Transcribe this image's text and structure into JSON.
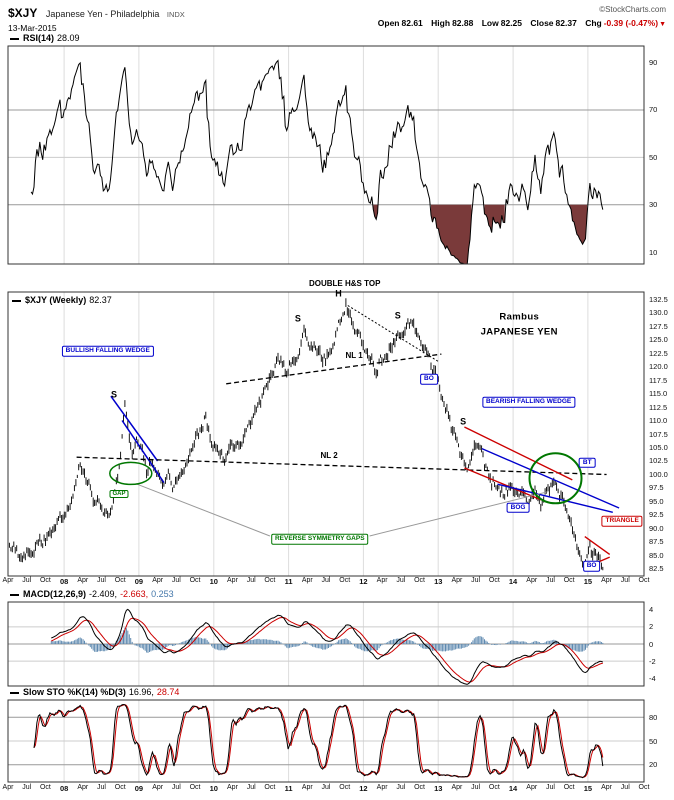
{
  "header": {
    "symbol": "$XJY",
    "title": "Japanese Yen - Philadelphia",
    "exchange": "INDX",
    "copyright": "©StockCharts.com",
    "date": "13-Mar-2015",
    "quote": {
      "open_label": "Open",
      "open": "82.61",
      "high_label": "High",
      "high": "82.88",
      "low_label": "Low",
      "low": "82.25",
      "close_label": "Close",
      "close": "82.37",
      "chg_label": "Chg",
      "chg": "-0.39 (-0.47%)",
      "chg_dir": "▼"
    }
  },
  "panels": {
    "rsi": {
      "label": "RSI(14)",
      "value": "28.09"
    },
    "main": {
      "label": "$XJY (Weekly)",
      "value": "82.37"
    },
    "macd": {
      "label": "MACD(12,26,9)",
      "v1": "-2.409,",
      "v2": "-2.663,",
      "v3": "0.253"
    },
    "sto": {
      "label": "Slow STO %K(14) %D(3)",
      "v1": "16.96,",
      "v2": "28.74"
    }
  },
  "x_axis": {
    "labels": [
      "Apr",
      "Jul",
      "Oct",
      "08",
      "Apr",
      "Jul",
      "Oct",
      "09",
      "Apr",
      "Jul",
      "Oct",
      "10",
      "Apr",
      "Jul",
      "Oct",
      "11",
      "Apr",
      "Jul",
      "Oct",
      "12",
      "Apr",
      "Jul",
      "Oct",
      "13",
      "Apr",
      "Jul",
      "Oct",
      "14",
      "Apr",
      "Jul",
      "Oct",
      "15",
      "Apr",
      "Jul",
      "Oct"
    ]
  },
  "colors": {
    "annotation_blue": "#0000cc",
    "annotation_green": "#007700",
    "annotation_red": "#cc0000",
    "macd_hist": "#5f8ab0",
    "signal_red": "#cc0000",
    "rsi_fill": "#7a3a3a",
    "grid": "#dddddd",
    "grid_dark": "#999999"
  },
  "chart_data": [
    {
      "type": "line",
      "subtype": "weekly-ohlc-bars",
      "title": "$XJY (Weekly)",
      "x_unit": "months since Apr-2007",
      "x_range": [
        0,
        102
      ],
      "x_data_end": 95.4,
      "ylim": [
        82.5,
        132.5
      ],
      "last_close": 82.37,
      "last_high": 82.88,
      "last_low": 82.25,
      "y_ticks": [
        {
          "label": "132.5",
          "v": 132.5
        },
        {
          "label": "130.0",
          "v": 130
        },
        {
          "label": "127.5",
          "v": 127.5
        },
        {
          "label": "125.0",
          "v": 125
        },
        {
          "label": "122.5",
          "v": 122.5
        },
        {
          "label": "120.0",
          "v": 120
        },
        {
          "label": "117.5",
          "v": 117.5
        },
        {
          "label": "115.0",
          "v": 115
        },
        {
          "label": "112.5",
          "v": 112.5
        },
        {
          "label": "110.0",
          "v": 110
        },
        {
          "label": "107.5",
          "v": 107.5
        },
        {
          "label": "105.0",
          "v": 105
        },
        {
          "label": "102.5",
          "v": 102.5
        },
        {
          "label": "100.0",
          "v": 100
        },
        {
          "label": "97.5",
          "v": 97.5
        },
        {
          "label": "95.0",
          "v": 95
        },
        {
          "label": "92.5",
          "v": 92.5
        },
        {
          "label": "90.0",
          "v": 90
        },
        {
          "label": "87.5",
          "v": 87.5
        },
        {
          "label": "85.0",
          "v": 85
        },
        {
          "label": "82.5",
          "v": 82.5
        }
      ],
      "series": [
        {
          "name": "$XJY weekly close (approximate anchor points read from chart)",
          "points": [
            [
              0,
              87.5
            ],
            [
              1,
              86.2
            ],
            [
              2,
              84.6
            ],
            [
              3,
              85.3
            ],
            [
              4,
              86.0
            ],
            [
              5,
              87.6
            ],
            [
              6,
              88.4
            ],
            [
              7,
              89.6
            ],
            [
              8,
              91.0
            ],
            [
              9,
              92.0
            ],
            [
              10,
              94.0
            ],
            [
              10.7,
              97.0
            ],
            [
              11.5,
              101.5
            ],
            [
              12.5,
              99.2
            ],
            [
              13.5,
              95.8
            ],
            [
              15,
              93.0
            ],
            [
              16,
              92.2
            ],
            [
              17,
              95.5
            ],
            [
              17.6,
              99.8
            ],
            [
              18,
              104.0
            ],
            [
              18.7,
              112.8
            ],
            [
              19.3,
              108.0
            ],
            [
              20,
              103.5
            ],
            [
              20.7,
              107.3
            ],
            [
              21.5,
              104.0
            ],
            [
              22.3,
              100.5
            ],
            [
              23,
              102.3
            ],
            [
              24,
              99.5
            ],
            [
              25,
              97.3
            ],
            [
              25.7,
              99.5
            ],
            [
              26.5,
              96.8
            ],
            [
              27,
              98.5
            ],
            [
              28,
              101.0
            ],
            [
              29,
              104.0
            ],
            [
              30,
              106.5
            ],
            [
              31,
              108.5
            ],
            [
              31.7,
              110.5
            ],
            [
              32.5,
              107.0
            ],
            [
              33.5,
              104.5
            ],
            [
              34.5,
              103.2
            ],
            [
              35.5,
              105.0
            ],
            [
              36.5,
              104.0
            ],
            [
              37.5,
              106.5
            ],
            [
              38.5,
              109.0
            ],
            [
              40,
              112.0
            ],
            [
              41,
              114.5
            ],
            [
              42,
              117.0
            ],
            [
              43,
              120.0
            ],
            [
              43.7,
              121.5
            ],
            [
              44.5,
              119.0
            ],
            [
              45.5,
              120.5
            ],
            [
              46.5,
              123.0
            ],
            [
              47.5,
              127.3
            ],
            [
              48.5,
              124.5
            ],
            [
              49.5,
              122.5
            ],
            [
              50.5,
              121.0
            ],
            [
              51.5,
              122.5
            ],
            [
              52.5,
              125.5
            ],
            [
              53.5,
              129.0
            ],
            [
              54.2,
              131.7
            ],
            [
              55,
              128.5
            ],
            [
              56,
              126.0
            ],
            [
              57,
              124.0
            ],
            [
              58,
              121.5
            ],
            [
              59,
              119.8
            ],
            [
              60,
              121.5
            ],
            [
              61,
              123.5
            ],
            [
              62,
              125.0
            ],
            [
              63,
              126.3
            ],
            [
              64,
              127.5
            ],
            [
              64.8,
              128.3
            ],
            [
              65.5,
              126.5
            ],
            [
              66.5,
              124.5
            ],
            [
              67.5,
              121.5
            ],
            [
              68.3,
              119.0
            ],
            [
              69,
              117.0
            ],
            [
              70,
              113.5
            ],
            [
              71,
              109.0
            ],
            [
              72,
              105.5
            ],
            [
              73,
              102.2
            ],
            [
              74,
              101.2
            ],
            [
              74.8,
              105.8
            ],
            [
              75.5,
              104.5
            ],
            [
              76.5,
              101.5
            ],
            [
              77.5,
              99.0
            ],
            [
              78.5,
              97.5
            ],
            [
              79.5,
              96.5
            ],
            [
              80.5,
              97.8
            ],
            [
              81.5,
              95.8
            ],
            [
              82.5,
              97.2
            ],
            [
              83.5,
              95.2
            ],
            [
              84.5,
              96.6
            ],
            [
              85.5,
              94.6
            ],
            [
              86.5,
              96.2
            ],
            [
              87.5,
              97.8
            ],
            [
              88.3,
              96.5
            ],
            [
              89,
              95.0
            ],
            [
              89.8,
              92.8
            ],
            [
              90.5,
              89.5
            ],
            [
              91.3,
              86.0
            ],
            [
              92,
              83.4
            ],
            [
              92.5,
              82.8
            ],
            [
              93,
              86.6
            ],
            [
              93.3,
              87.4
            ],
            [
              93.8,
              85.0
            ],
            [
              94.2,
              86.2
            ],
            [
              94.6,
              84.6
            ],
            [
              95,
              85.4
            ],
            [
              95.4,
              82.37
            ]
          ]
        }
      ],
      "annotations": {
        "labels": [
          {
            "text": "DOUBLE H&S TOP",
            "m": 54,
            "p": 135.2,
            "cls": "ab s8",
            "name": "double-hs-top-label"
          },
          {
            "text": "BULLISH FALLING WEDGE",
            "m": 16,
            "p": 122.8,
            "cls": "abox-blue",
            "name": "bullish-falling-wedge-label"
          },
          {
            "text": "S",
            "m": 17,
            "p": 114.8,
            "cls": "ab",
            "name": "shoulder-2008-label"
          },
          {
            "text": "NL 1",
            "m": 55.5,
            "p": 121.9,
            "cls": "ab s8",
            "name": "neckline-1-label"
          },
          {
            "text": "S",
            "m": 46.5,
            "p": 128.8,
            "cls": "ab",
            "name": "left-shoulder-2011-label"
          },
          {
            "text": "H",
            "m": 53,
            "p": 133.4,
            "cls": "ab",
            "name": "head-label"
          },
          {
            "text": "S",
            "m": 62.5,
            "p": 129.4,
            "cls": "ab",
            "name": "right-shoulder-2012-label"
          },
          {
            "text": "Rambus",
            "m": 82,
            "p": 129.2,
            "cls": "ab s9",
            "name": "rambus-signature"
          },
          {
            "text": "JAPANESE YEN",
            "m": 82,
            "p": 126.4,
            "cls": "ab s9",
            "name": "japanese-yen-label"
          },
          {
            "text": "BO",
            "m": 67.5,
            "p": 117.6,
            "cls": "abox-blue",
            "name": "breakout-nl1-label"
          },
          {
            "text": "BEARISH FALLING WEDGE",
            "m": 83.5,
            "p": 113.4,
            "cls": "abox-blue",
            "name": "bearish-falling-wedge-label"
          },
          {
            "text": "S",
            "m": 73,
            "p": 109.8,
            "cls": "ab",
            "name": "shoulder-2013-label"
          },
          {
            "text": "NL 2",
            "m": 51.5,
            "p": 103.4,
            "cls": "ab s8",
            "name": "neckline-2-label"
          },
          {
            "text": "GAP",
            "m": 17.8,
            "p": 96.3,
            "cls": "abox-green s6",
            "name": "gap-label"
          },
          {
            "text": "BOG",
            "m": 81.8,
            "p": 93.8,
            "cls": "abox-blue",
            "name": "breakout-gap-label"
          },
          {
            "text": "BT",
            "m": 92.9,
            "p": 102.2,
            "cls": "abox-blue",
            "name": "backtest-label"
          },
          {
            "text": "REVERSE SYMMETRY GAPS",
            "m": 50,
            "p": 88.0,
            "cls": "abox-green",
            "name": "reverse-symmetry-gaps-label"
          },
          {
            "text": "TRIANGLE",
            "m": 98.5,
            "p": 91.3,
            "cls": "abox-red",
            "name": "triangle-label"
          },
          {
            "text": "BO",
            "m": 93.6,
            "p": 83.0,
            "cls": "abox-blue",
            "name": "breakout-triangle-label"
          }
        ],
        "lines": [
          {
            "x1": 16.5,
            "y1": 114.5,
            "x2": 24,
            "y2": 102.5,
            "color": "#0000cc",
            "w": 1.5
          },
          {
            "x1": 18.3,
            "y1": 110.0,
            "x2": 25,
            "y2": 98.5,
            "color": "#0000cc",
            "w": 1.5
          },
          {
            "x1": 35,
            "y1": 116.8,
            "x2": 69.5,
            "y2": 122.3,
            "color": "#000000",
            "w": 1.3,
            "dash": "5,3"
          },
          {
            "x1": 11,
            "y1": 103.2,
            "x2": 96,
            "y2": 100.0,
            "color": "#000000",
            "w": 1.3,
            "dash": "5,3"
          },
          {
            "x1": 54.5,
            "y1": 131.3,
            "x2": 69.2,
            "y2": 120.8,
            "color": "#000000",
            "w": 1,
            "dash": "2,2"
          },
          {
            "x1": 73.2,
            "y1": 108.8,
            "x2": 90.5,
            "y2": 99.0,
            "color": "#cc0000",
            "w": 1.4
          },
          {
            "x1": 73.2,
            "y1": 101.2,
            "x2": 85.5,
            "y2": 95.3,
            "color": "#cc0000",
            "w": 1.4
          },
          {
            "x1": 76,
            "y1": 104.8,
            "x2": 98,
            "y2": 93.8,
            "color": "#0000cc",
            "w": 1.4
          },
          {
            "x1": 78.5,
            "y1": 98.2,
            "x2": 97,
            "y2": 93.0,
            "color": "#0000cc",
            "w": 1.4
          },
          {
            "x1": 92.5,
            "y1": 88.5,
            "x2": 96.5,
            "y2": 85.2,
            "color": "#cc0000",
            "w": 1.4
          },
          {
            "x1": 92.3,
            "y1": 82.6,
            "x2": 96.5,
            "y2": 84.7,
            "color": "#cc0000",
            "w": 1.4
          },
          {
            "x1": 42,
            "y1": 88.6,
            "x2": 20.5,
            "y2": 98.3,
            "color": "#999999",
            "w": 1
          },
          {
            "x1": 58,
            "y1": 88.6,
            "x2": 86.5,
            "y2": 96.8,
            "color": "#999999",
            "w": 1
          }
        ],
        "ellipses": [
          {
            "m": 19.7,
            "p": 100.2,
            "rx": 21,
            "ry": 11,
            "color": "#007700",
            "w": 1.5,
            "name": "gap-ellipse"
          },
          {
            "m": 87.8,
            "p": 99.3,
            "rx": 26,
            "ry": 25,
            "color": "#007700",
            "w": 2,
            "name": "reverse-symmetry-circle"
          }
        ]
      }
    },
    {
      "type": "line",
      "title": "RSI(14)",
      "period": 14,
      "last_value": 28.09,
      "ylim": [
        0,
        100
      ],
      "oversold_fill_below": 30,
      "derivation": "computed from the weekly close series of chart_data[0]",
      "y_ticks": [
        {
          "label": "90",
          "v": 90
        },
        {
          "label": "70",
          "v": 70
        },
        {
          "label": "50",
          "v": 50
        },
        {
          "label": "30",
          "v": 30
        },
        {
          "label": "10",
          "v": 10
        }
      ],
      "gridlines": [
        {
          "v": 70,
          "c": "#999999"
        },
        {
          "v": 50,
          "c": "#cccccc"
        },
        {
          "v": 30,
          "c": "#999999"
        }
      ]
    },
    {
      "type": "line",
      "title": "MACD(12,26,9)",
      "components": [
        "macd line (black)",
        "signal line (red)",
        "histogram (blue)"
      ],
      "last_values": {
        "macd": -2.409,
        "signal": -2.663,
        "hist": 0.253
      },
      "ylim": [
        -5,
        5
      ],
      "derivation": "computed from the weekly close series of chart_data[0]",
      "y_ticks": [
        {
          "label": "4",
          "v": 4
        },
        {
          "label": "2",
          "v": 2
        },
        {
          "label": "0",
          "v": 0
        },
        {
          "label": "-2",
          "v": -2
        },
        {
          "label": "-4",
          "v": -4
        }
      ],
      "gridlines": [
        {
          "v": 2,
          "c": "#cccccc"
        },
        {
          "v": 0,
          "c": "#999999"
        },
        {
          "v": -2,
          "c": "#cccccc"
        }
      ]
    },
    {
      "type": "line",
      "title": "Slow STO %K(14) %D(3)",
      "last_values": {
        "k": 16.96,
        "d": 28.74
      },
      "ylim": [
        0,
        100
      ],
      "derivation": "computed from the weekly high/low/close series of chart_data[0]",
      "y_ticks": [
        {
          "label": "80",
          "v": 80
        },
        {
          "label": "50",
          "v": 50
        },
        {
          "label": "20",
          "v": 20
        }
      ],
      "gridlines": [
        {
          "v": 80,
          "c": "#999999"
        },
        {
          "v": 50,
          "c": "#cccccc"
        },
        {
          "v": 20,
          "c": "#999999"
        }
      ]
    }
  ]
}
